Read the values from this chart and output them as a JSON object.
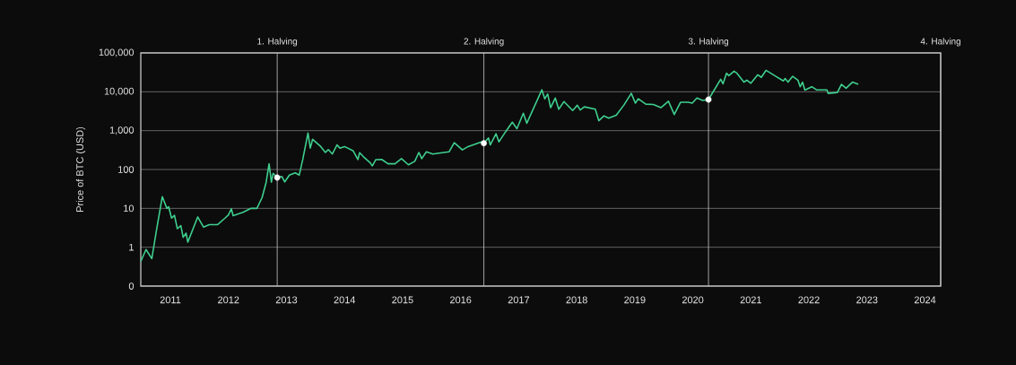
{
  "chart_data": {
    "type": "line",
    "ylabel": "Price of BTC (USD)",
    "log": "y",
    "grid": "y",
    "xlim": [
      2010.49,
      2024.27
    ],
    "xticks": [
      2011,
      2012,
      2013,
      2014,
      2015,
      2016,
      2017,
      2018,
      2019,
      2020,
      2021,
      2022,
      2023,
      2024
    ],
    "ylim": [
      0.1,
      100000
    ],
    "yticks": [
      {
        "value": 0.1,
        "label": "0"
      },
      1,
      10,
      100,
      {
        "value": 1000,
        "label": "1,000"
      },
      {
        "value": 10000,
        "label": "10,000"
      },
      {
        "value": 100000,
        "label": "100,000"
      }
    ],
    "series": [
      {
        "color": "#3ecf8e",
        "line_style": "solid",
        "marker": "none",
        "x": [
          2010.49,
          2010.58,
          2010.68,
          2010.76,
          2010.86,
          2010.94,
          2010.97,
          2011.02,
          2011.07,
          2011.12,
          2011.18,
          2011.22,
          2011.27,
          2011.3,
          2011.47,
          2011.57,
          2011.67,
          2011.81,
          2011.94,
          2012.0,
          2012.05,
          2012.08,
          2012.25,
          2012.39,
          2012.49,
          2012.58,
          2012.65,
          2012.7,
          2012.74,
          2012.77,
          2012.84,
          2012.92,
          2012.97,
          2013.05,
          2013.15,
          2013.22,
          2013.28,
          2013.37,
          2013.41,
          2013.45,
          2013.59,
          2013.67,
          2013.72,
          2013.79,
          2013.87,
          2013.92,
          2014.0,
          2014.15,
          2014.23,
          2014.26,
          2014.33,
          2014.44,
          2014.48,
          2014.54,
          2014.64,
          2014.75,
          2014.87,
          2014.98,
          2015.1,
          2015.21,
          2015.28,
          2015.33,
          2015.41,
          2015.52,
          2015.8,
          2015.89,
          2016.03,
          2016.13,
          2016.36,
          2016.4,
          2016.48,
          2016.51,
          2016.61,
          2016.66,
          2016.78,
          2016.89,
          2016.97,
          2017.08,
          2017.14,
          2017.4,
          2017.45,
          2017.5,
          2017.55,
          2017.63,
          2017.69,
          2017.78,
          2017.93,
          2018.01,
          2018.06,
          2018.13,
          2018.32,
          2018.38,
          2018.47,
          2018.55,
          2018.68,
          2018.81,
          2018.94,
          2019.01,
          2019.06,
          2019.19,
          2019.32,
          2019.45,
          2019.58,
          2019.68,
          2019.79,
          2019.92,
          2019.99,
          2020.07,
          2020.17,
          2020.27,
          2020.48,
          2020.52,
          2020.58,
          2020.62,
          2020.71,
          2020.76,
          2020.88,
          2020.93,
          2021.0,
          2021.12,
          2021.18,
          2021.26,
          2021.43,
          2021.56,
          2021.59,
          2021.64,
          2021.72,
          2021.81,
          2021.85,
          2021.89,
          2021.93,
          2022.05,
          2022.13,
          2022.31,
          2022.33,
          2022.49,
          2022.56,
          2022.64,
          2022.75,
          2022.85
        ],
        "values": [
          0.43,
          0.87,
          0.51,
          2.7,
          20,
          10,
          11,
          5.6,
          6.6,
          3.0,
          3.6,
          1.8,
          2.3,
          1.35,
          6.0,
          3.3,
          3.8,
          3.8,
          5.6,
          6.8,
          9.8,
          6.5,
          7.9,
          10,
          10,
          19,
          47,
          140,
          47,
          80,
          62,
          66,
          48,
          72,
          82,
          72,
          180,
          870,
          355,
          600,
          390,
          275,
          325,
          250,
          430,
          355,
          390,
          300,
          180,
          270,
          210,
          150,
          124,
          180,
          182,
          140,
          140,
          190,
          132,
          162,
          275,
          190,
          285,
          250,
          285,
          490,
          320,
          390,
          515,
          475,
          650,
          430,
          830,
          515,
          960,
          1650,
          1120,
          2800,
          1550,
          11200,
          6600,
          8700,
          3900,
          6900,
          3550,
          5600,
          3300,
          4500,
          3400,
          4100,
          3550,
          1800,
          2400,
          2100,
          2500,
          4500,
          9100,
          5100,
          6600,
          4800,
          4700,
          3900,
          5700,
          2600,
          5400,
          5400,
          5100,
          6900,
          6000,
          6300,
          21000,
          16000,
          30000,
          26000,
          34000,
          30000,
          17700,
          20000,
          16600,
          27500,
          23500,
          35600,
          25000,
          19000,
          22000,
          17700,
          25000,
          20000,
          13500,
          17700,
          11000,
          13500,
          11200,
          11200,
          9100,
          9600,
          15500,
          12300,
          17700,
          15500
        ]
      },
      {
        "type": "scatter",
        "color": "#ffffff",
        "marker": "circle",
        "x": [
          2012.84,
          2016.4,
          2020.27
        ],
        "values": [
          62,
          475,
          6300
        ]
      }
    ],
    "ref_lines": [
      {
        "axis": "x",
        "value": 2012.84,
        "label": "1. Halving",
        "color": "#c8c8c8"
      },
      {
        "axis": "x",
        "value": 2016.4,
        "label": "2. Halving",
        "color": "#c8c8c8"
      },
      {
        "axis": "x",
        "value": 2020.27,
        "label": "3. Halving",
        "color": "#c8c8c8"
      },
      {
        "axis": "x",
        "value": 2024.27,
        "label": "4. Halving",
        "color": "#c8c8c8"
      }
    ]
  }
}
